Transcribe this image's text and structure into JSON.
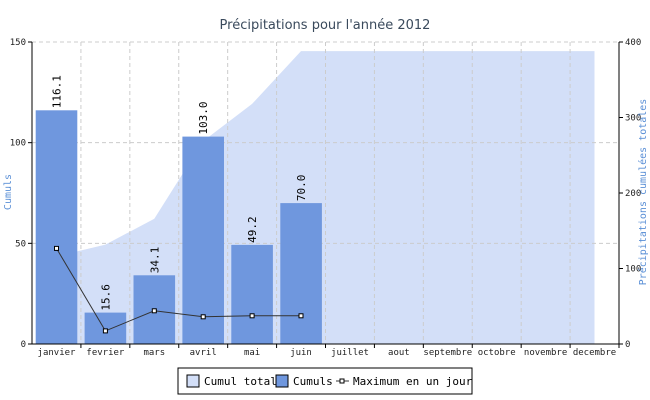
{
  "chart_data": {
    "type": "bar",
    "title": "Précipitations pour l'année 2012",
    "ylabel_left": "Cumuls",
    "ylabel_right": "Précipitations cumulées totales",
    "ylim_left": [
      0,
      150
    ],
    "ylim_right": [
      0,
      400
    ],
    "yticks_left": [
      0,
      50,
      100,
      150
    ],
    "yticks_right": [
      0,
      100,
      200,
      300,
      400
    ],
    "grid": true,
    "legend_position": "bottom",
    "categories": [
      "janvier",
      "fevrier",
      "mars",
      "avril",
      "mai",
      "juin",
      "juillet",
      "aout",
      "septembre",
      "octobre",
      "novembre",
      "decembre"
    ],
    "series": [
      {
        "name": "Cumul total",
        "kind": "area",
        "axis": "right",
        "color": "#d3dff8",
        "values": [
          116.1,
          131.7,
          165.8,
          268.8,
          318.0,
          388.0,
          388.0,
          388.0,
          388.0,
          388.0,
          388.0,
          388.0
        ]
      },
      {
        "name": "Cumuls",
        "kind": "bar",
        "axis": "left",
        "color": "#6f97de",
        "values": [
          116.1,
          15.6,
          34.1,
          103.0,
          49.2,
          70.0,
          null,
          null,
          null,
          null,
          null,
          null
        ],
        "labels": [
          "116.1",
          "15.6",
          "34.1",
          "103.0",
          "49.2",
          "70.0"
        ]
      },
      {
        "name": "Maximum en un jour",
        "kind": "line",
        "axis": "left",
        "color": "#333333",
        "values": [
          47.5,
          6.5,
          16.5,
          13.5,
          14.0,
          14.0,
          null,
          null,
          null,
          null,
          null,
          null
        ]
      }
    ]
  },
  "legend": {
    "items": [
      "Cumul total",
      "Cumuls",
      "Maximum en un jour"
    ]
  }
}
